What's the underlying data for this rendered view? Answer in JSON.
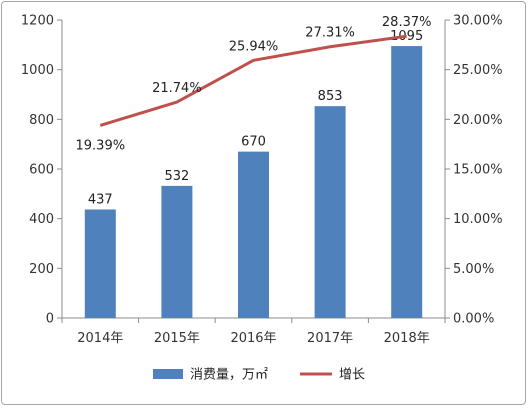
{
  "chart_data": {
    "type": "bar",
    "categories": [
      "2014年",
      "2015年",
      "2016年",
      "2017年",
      "2018年"
    ],
    "series": [
      {
        "name": "消费量，万㎡",
        "type": "bar",
        "axis": "left",
        "values": [
          437,
          532,
          670,
          853,
          1095
        ],
        "labels": [
          "437",
          "532",
          "670",
          "853",
          "1095"
        ],
        "color": "#4f81bd"
      },
      {
        "name": "增长",
        "type": "line",
        "axis": "right",
        "values": [
          19.39,
          21.74,
          25.94,
          27.31,
          28.37
        ],
        "labels": [
          "19.39%",
          "21.74%",
          "25.94%",
          "27.31%",
          "28.37%"
        ],
        "color": "#c0504d"
      }
    ],
    "y_left": {
      "ylim": [
        0,
        1200
      ],
      "ticks": [
        "0",
        "200",
        "400",
        "600",
        "800",
        "1000",
        "1200"
      ]
    },
    "y_right": {
      "ylim": [
        0,
        30
      ],
      "ticks": [
        "0.00%",
        "5.00%",
        "10.00%",
        "15.00%",
        "20.00%",
        "25.00%",
        "30.00%"
      ]
    },
    "legend": {
      "position": "bottom",
      "items": [
        "消费量，万㎡",
        "增长"
      ]
    },
    "grid": false
  }
}
